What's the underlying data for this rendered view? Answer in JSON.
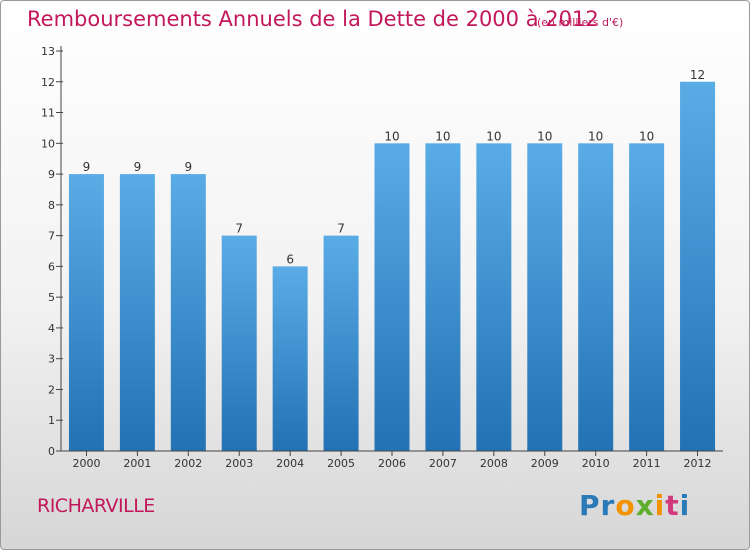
{
  "title": "Remboursements Annuels de la Dette de 2000 à 2012",
  "unit": "(en milliers d'€)",
  "commune": "RICHARVILLE",
  "logo": {
    "text": "Proxiti",
    "colors": [
      "#2a7ab8",
      "#f39200",
      "#5fae2e",
      "#d23a7c"
    ]
  },
  "colors": {
    "accent": "#c2185b",
    "bar_light": "#5aace6",
    "bar_dark": "#2272b4",
    "axis": "#444444"
  },
  "chart_data": {
    "type": "bar",
    "categories": [
      "2000",
      "2001",
      "2002",
      "2003",
      "2004",
      "2005",
      "2006",
      "2007",
      "2008",
      "2009",
      "2010",
      "2011",
      "2012"
    ],
    "values": [
      9,
      9,
      9,
      7,
      6,
      7,
      10,
      10,
      10,
      10,
      10,
      10,
      12
    ],
    "data_labels": [
      "9",
      "9",
      "9",
      "7",
      "6",
      "7",
      "10",
      "10",
      "10",
      "10",
      "10",
      "10",
      "12"
    ],
    "y_ticks": [
      "0",
      "1",
      "2",
      "3",
      "4",
      "5",
      "6",
      "7",
      "8",
      "9",
      "10",
      "11",
      "12",
      "13"
    ],
    "ylim": [
      0,
      13
    ],
    "grid": false,
    "legend": "none"
  }
}
